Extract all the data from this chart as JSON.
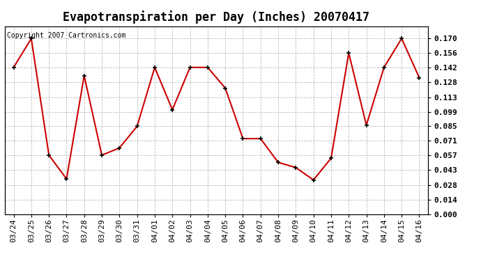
{
  "title": "Evapotranspiration per Day (Inches) 20070417",
  "copyright_text": "Copyright 2007 Cartronics.com",
  "x_labels": [
    "03/24",
    "03/25",
    "03/26",
    "03/27",
    "03/28",
    "03/29",
    "03/30",
    "03/31",
    "04/01",
    "04/02",
    "04/03",
    "04/04",
    "04/05",
    "04/06",
    "04/07",
    "04/08",
    "04/09",
    "04/10",
    "04/11",
    "04/12",
    "04/13",
    "04/14",
    "04/15",
    "04/16"
  ],
  "y_values": [
    0.142,
    0.17,
    0.057,
    0.034,
    0.134,
    0.057,
    0.064,
    0.085,
    0.142,
    0.101,
    0.142,
    0.142,
    0.122,
    0.073,
    0.073,
    0.05,
    0.045,
    0.033,
    0.054,
    0.156,
    0.086,
    0.142,
    0.17,
    0.132
  ],
  "y_ticks": [
    0.0,
    0.014,
    0.028,
    0.043,
    0.057,
    0.071,
    0.085,
    0.099,
    0.113,
    0.128,
    0.142,
    0.156,
    0.17
  ],
  "line_color": "#cc0000",
  "marker": "+",
  "grid_color": "#bbbbbb",
  "background_color": "#ffffff",
  "title_fontsize": 12,
  "tick_fontsize": 8,
  "copyright_fontsize": 7,
  "ylim": [
    0.0,
    0.182
  ],
  "fig_width": 6.9,
  "fig_height": 3.75,
  "dpi": 100
}
